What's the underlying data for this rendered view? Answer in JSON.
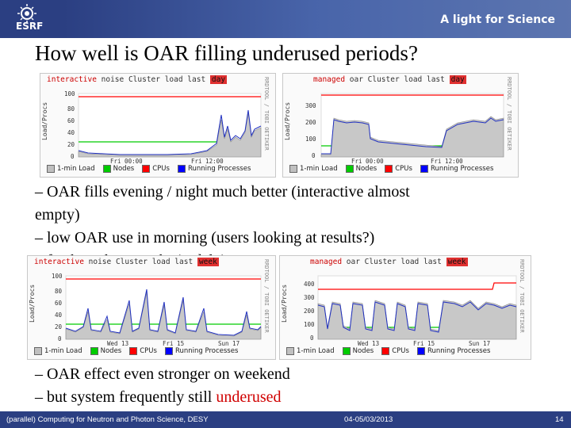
{
  "header": {
    "logo_text": "ESRF",
    "tagline": "A light for Science"
  },
  "title": "How well is OAR filling underused periods?",
  "graphs": [
    {
      "id": "g1",
      "title_a": "interactive",
      "title_b": " noise Cluster  load last ",
      "title_c": "day",
      "ylabel": "Load/Procs",
      "yticks": [
        "100",
        "80",
        "60",
        "40",
        "20",
        "0"
      ],
      "xticks": [
        "Fri 00:00",
        "Fri 12:00"
      ],
      "rlabel": "RRDTOOL / TOBI OETIKER",
      "legend": [
        "1-min Load",
        "Nodes",
        "CPUs",
        "Running Processes"
      ]
    },
    {
      "id": "g2",
      "title_a": "managed",
      "title_b": " oar Cluster  load last ",
      "title_c": "day",
      "ylabel": "Load/Procs",
      "yticks": [
        "300",
        "200",
        "100",
        "0"
      ],
      "xticks": [
        "Fri 00:00",
        "Fri 12:00"
      ],
      "rlabel": "RRDTOOL / TOBI OETIKER",
      "legend": [
        "1-min Load",
        "Nodes",
        "CPUs",
        "Running Processes"
      ]
    },
    {
      "id": "g3",
      "title_a": "interactive",
      "title_b": " noise Cluster  load last ",
      "title_c": "week",
      "ylabel": "Load/Procs",
      "yticks": [
        "100",
        "80",
        "60",
        "40",
        "20",
        "0"
      ],
      "xticks": [
        "Wed 13",
        "Fri 15",
        "Sun 17"
      ],
      "rlabel": "RRDTOOL / TOBI OETIKER",
      "legend": [
        "1-min Load",
        "Nodes",
        "CPUs",
        "Running Processes"
      ]
    },
    {
      "id": "g4",
      "title_a": "managed",
      "title_b": " oar Cluster  load last ",
      "title_c": "week",
      "ylabel": "Load/Procs",
      "yticks": [
        "400",
        "300",
        "200",
        "100",
        "0"
      ],
      "xticks": [
        "Wed 13",
        "Fri 15",
        "Sun 17"
      ],
      "rlabel": "RRDTOOL / TOBI OETIKER",
      "legend": [
        "1-min Load",
        "Nodes",
        "CPUs",
        "Running Processes"
      ]
    }
  ],
  "legend_colors": [
    "#c0c0c0",
    "#00cc00",
    "#ff0000",
    "#0000ff"
  ],
  "bullets_top": [
    "– OAR fills evening / night much better (interactive almost",
    "empty)",
    "– low OAR use in morning (users looking at results?)",
    "– fresh peaks in night (x-daly)"
  ],
  "bullets_bottom": [
    {
      "pre": "– OAR effect even stronger on weekend",
      "red": ""
    },
    {
      "pre": "– but system frequently still ",
      "red": "underused"
    }
  ],
  "footer": {
    "left": "(parallel) Computing for Neutron and Photon Science, DESY",
    "date": "04-05/03/2013",
    "page": "14"
  }
}
